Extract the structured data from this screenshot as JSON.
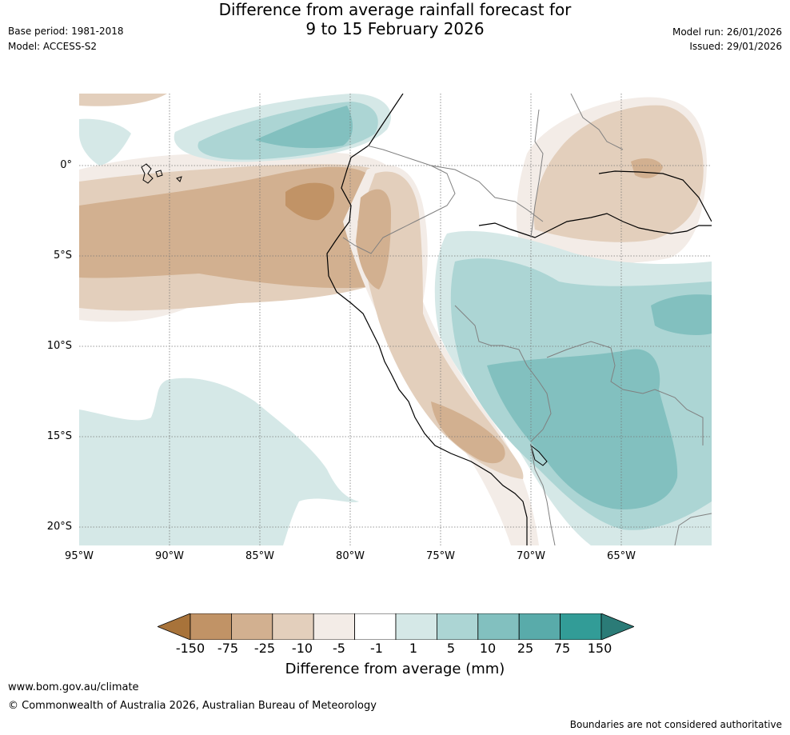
{
  "header": {
    "title_line1": "Difference from average rainfall forecast for",
    "title_line2": "9 to 15 February 2026",
    "base_period": "Base period: 1981-2018",
    "model": "Model: ACCESS-S2",
    "model_run": "Model run: 26/01/2026",
    "issued": "Issued: 29/01/2026"
  },
  "map": {
    "lat_labels": [
      "0°",
      "5°S",
      "10°S",
      "15°S",
      "20°S"
    ],
    "lon_labels": [
      "95°W",
      "90°W",
      "85°W",
      "80°W",
      "75°W",
      "70°W",
      "65°W"
    ]
  },
  "legend": {
    "title": "Difference from average (mm)",
    "ticks": [
      "-150",
      "-75",
      "-25",
      "-10",
      "-5",
      "-1",
      "1",
      "5",
      "10",
      "25",
      "75",
      "150"
    ],
    "colors": [
      "#a8733a",
      "#c19366",
      "#d2b090",
      "#e3cfbc",
      "#f3ece7",
      "#ffffff",
      "#d5e8e7",
      "#acd5d4",
      "#82c0bf",
      "#59abaa",
      "#329c97",
      "#2b7b77"
    ]
  },
  "footer": {
    "url": "www.bom.gov.au/climate",
    "copyright": "© Commonwealth of Australia 2026, Australian Bureau of Meteorology",
    "disclaimer": "Boundaries are not considered authoritative"
  }
}
